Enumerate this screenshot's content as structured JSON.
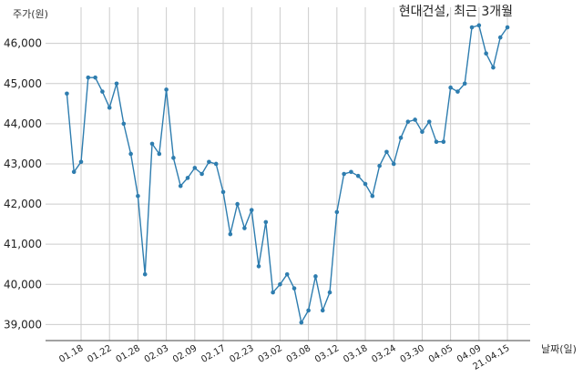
{
  "chart_data": {
    "type": "line",
    "title": "현대건설, 최근 3개월",
    "ylabel": "주가(원)",
    "xlabel": "날짜(일)",
    "ylim": [
      38600,
      46900
    ],
    "grid": true,
    "legend": "none",
    "colors": {
      "line": "#2E7DAF",
      "grid": "#CCCCCC"
    },
    "yticks": [
      39000,
      40000,
      41000,
      42000,
      43000,
      44000,
      45000,
      46000
    ],
    "ytick_labels": [
      "39,000",
      "40,000",
      "41,000",
      "42,000",
      "43,000",
      "44,000",
      "45,000",
      "46,000"
    ],
    "xtick_labels": [
      "01.18",
      "01.22",
      "01.28",
      "02.03",
      "02.09",
      "02.17",
      "02.23",
      "03.02",
      "03.08",
      "03.12",
      "03.18",
      "03.24",
      "03.30",
      "04.05",
      "04.09",
      "21.04.15"
    ],
    "xtick_index": [
      2,
      6,
      10,
      14,
      18,
      22,
      26,
      30,
      34,
      38,
      42,
      46,
      50,
      54,
      58,
      62
    ],
    "x_index": [
      0,
      1,
      2,
      3,
      4,
      5,
      6,
      7,
      8,
      9,
      10,
      11,
      12,
      13,
      14,
      15,
      16,
      17,
      18,
      19,
      20,
      21,
      22,
      23,
      24,
      25,
      26,
      27,
      28,
      29,
      30,
      31,
      32,
      33,
      34,
      35,
      36,
      37,
      38,
      39,
      40,
      41,
      42,
      43,
      44,
      45,
      46,
      47,
      48,
      49,
      50,
      51,
      52,
      53,
      54,
      55,
      56,
      57,
      58,
      59,
      60,
      61,
      62
    ],
    "values": [
      44750,
      42800,
      43050,
      45150,
      45150,
      44800,
      44400,
      45000,
      44000,
      43250,
      42200,
      40250,
      43500,
      43250,
      44850,
      43150,
      42450,
      42650,
      42900,
      42750,
      43050,
      43000,
      42300,
      41250,
      42000,
      41400,
      41850,
      40450,
      41550,
      39800,
      40000,
      40250,
      39900,
      39050,
      39350,
      40200,
      39350,
      39800,
      41800,
      42750,
      42800,
      42700,
      42500,
      42200,
      42950,
      43300,
      43000,
      43650,
      44050,
      44100,
      43800,
      44050,
      43550,
      43550,
      44900,
      44800,
      45000,
      46400,
      46450,
      45750,
      45400,
      46150,
      46400
    ]
  }
}
